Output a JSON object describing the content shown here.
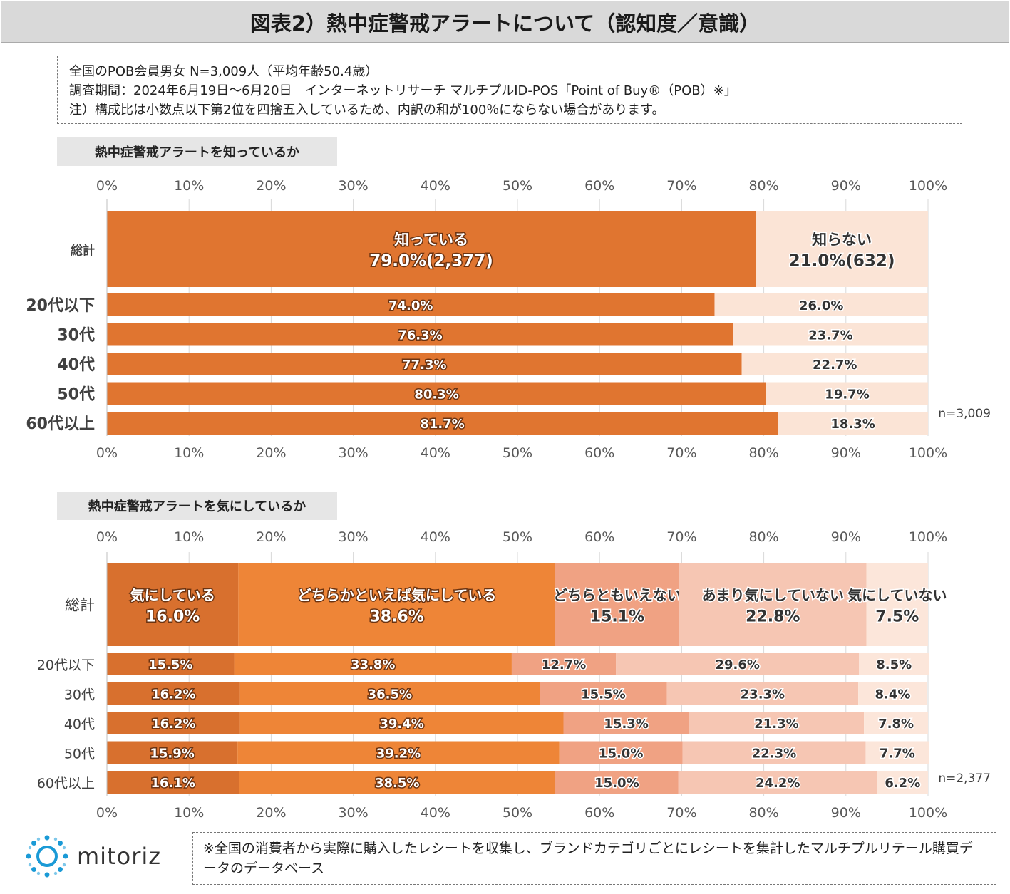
{
  "title": "図表2）熱中症警戒アラートについて（認知度／意識）",
  "notes": [
    "全国のPOB会員男女 N=3,009人（平均年齢50.4歳）",
    "調査期間：2024年6月19日～6月20日　インターネットリサーチ マルチプルID-POS「Point of Buy®（POB）※」",
    "注）構成比は小数点以下第2位を四捨五入しているため、内訳の和が100％にならない場合があります。"
  ],
  "footer_note": "※全国の消費者から実際に購入したレシートを収集し、ブランドカテゴリごとにレシートを集計したマルチプルリテール購買データのデータベース",
  "logo_text": "mitoriz",
  "chart_data": [
    {
      "type": "bar",
      "orientation": "horizontal-stacked-100",
      "title": "熱中症警戒アラートを知っているか",
      "axis_ticks": [
        "0%",
        "10%",
        "20%",
        "30%",
        "40%",
        "50%",
        "60%",
        "70%",
        "80%",
        "90%",
        "100%"
      ],
      "xlim": [
        0,
        100
      ],
      "n_label": "n=3,009",
      "categories": [
        "総計",
        "20代以下",
        "30代",
        "40代",
        "50代",
        "60代以上"
      ],
      "series": [
        {
          "name": "知っている",
          "color": "#E07530",
          "values": [
            79.0,
            74.0,
            76.3,
            77.3,
            80.3,
            81.7
          ]
        },
        {
          "name": "知らない",
          "color": "#FBE4D6",
          "values": [
            21.0,
            26.0,
            23.7,
            22.7,
            19.7,
            18.3
          ]
        }
      ],
      "value_labels": [
        [
          "79.0%(2,377)",
          "21.0%(632)"
        ],
        [
          "74.0%",
          "26.0%"
        ],
        [
          "76.3%",
          "23.7%"
        ],
        [
          "77.3%",
          "22.7%"
        ],
        [
          "80.3%",
          "19.7%"
        ],
        [
          "81.7%",
          "18.3%"
        ]
      ]
    },
    {
      "type": "bar",
      "orientation": "horizontal-stacked-100",
      "title": "熱中症警戒アラートを気にしているか",
      "axis_ticks": [
        "0%",
        "10%",
        "20%",
        "30%",
        "40%",
        "50%",
        "60%",
        "70%",
        "80%",
        "90%",
        "100%"
      ],
      "xlim": [
        0,
        100
      ],
      "n_label": "n=2,377",
      "categories": [
        "総計",
        "20代以下",
        "30代",
        "40代",
        "50代",
        "60代以上"
      ],
      "series": [
        {
          "name": "気にしている",
          "color": "#D8702E",
          "values": [
            16.0,
            15.5,
            16.2,
            16.2,
            15.9,
            16.1
          ]
        },
        {
          "name": "どちらかといえば気にしている",
          "color": "#EE8537",
          "values": [
            38.6,
            33.8,
            36.5,
            39.4,
            39.2,
            38.5
          ]
        },
        {
          "name": "どちらともいえない",
          "color": "#F0A283",
          "values": [
            15.1,
            12.7,
            15.5,
            15.3,
            15.0,
            15.0
          ]
        },
        {
          "name": "あまり気にしていない",
          "color": "#F6C6B3",
          "values": [
            22.8,
            29.6,
            23.3,
            21.3,
            22.3,
            24.2
          ]
        },
        {
          "name": "気にしていない",
          "color": "#FCE6DA",
          "values": [
            7.5,
            8.5,
            8.4,
            7.8,
            7.7,
            6.2
          ]
        }
      ]
    }
  ]
}
